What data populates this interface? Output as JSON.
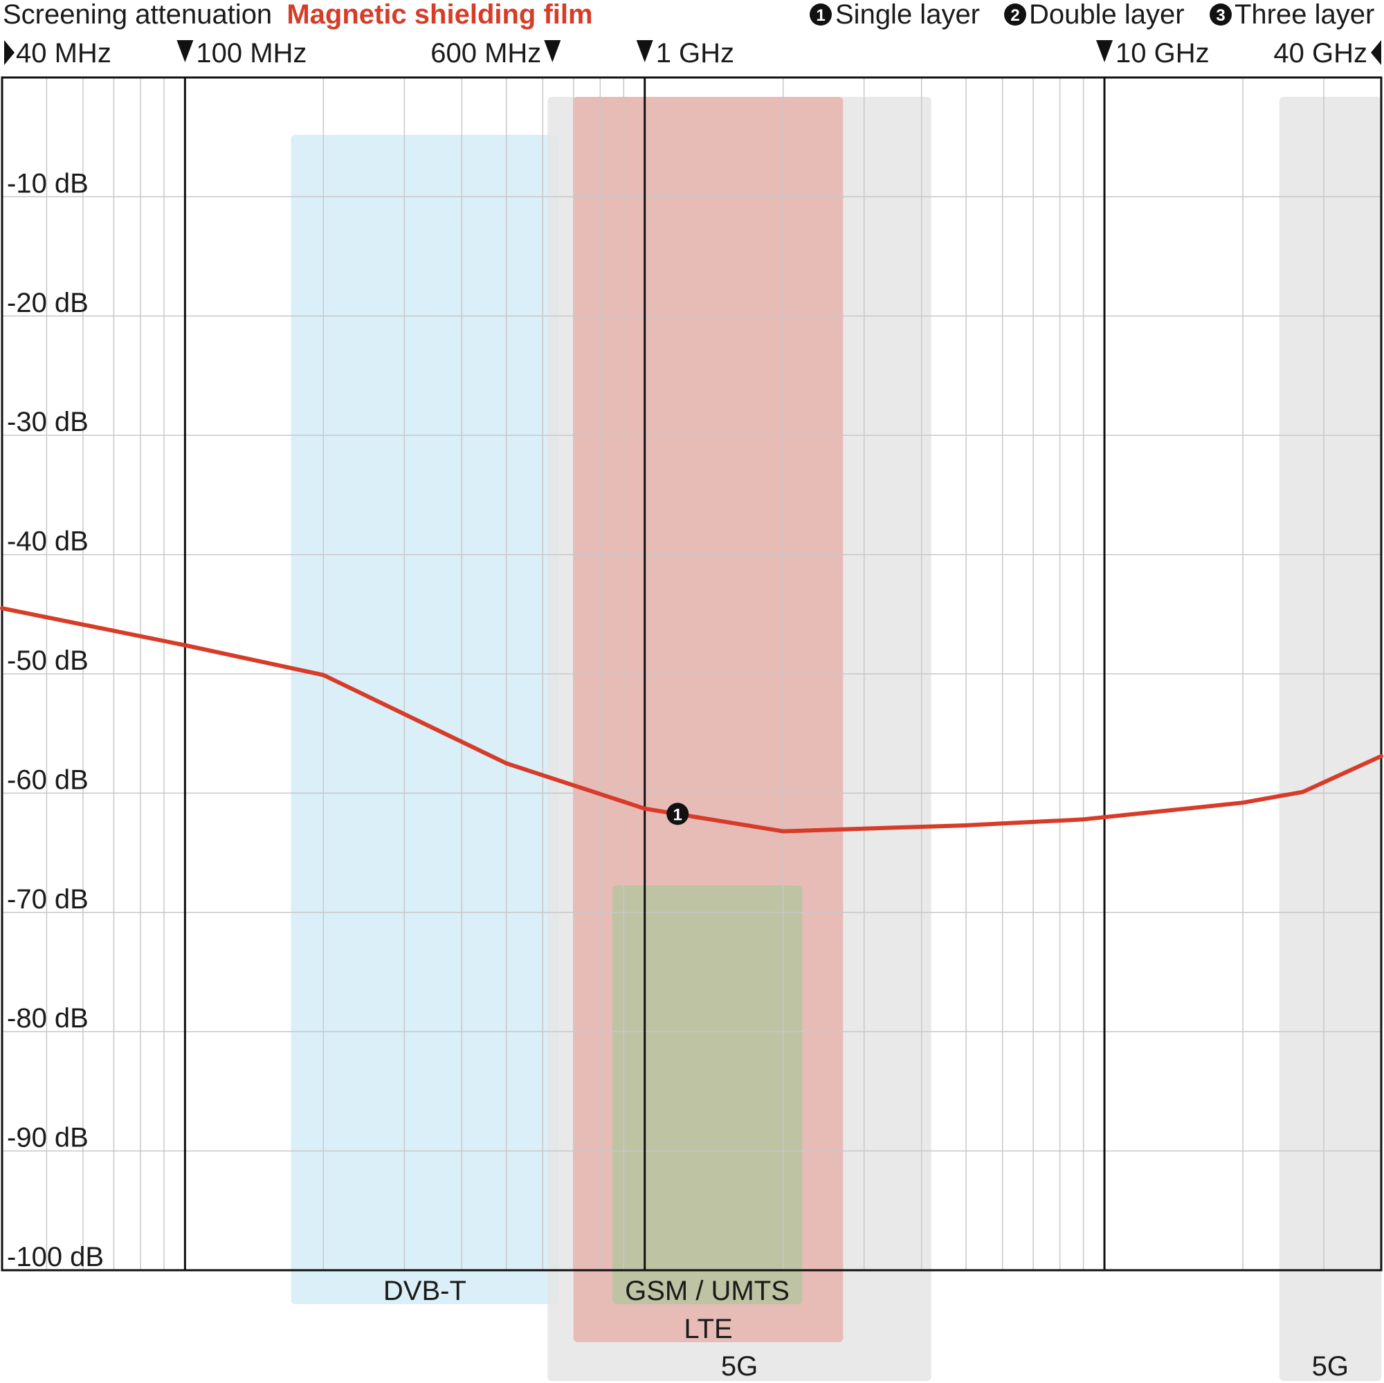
{
  "header": {
    "title_prefix": "Screening attenuation",
    "title_product": "Magnetic shielding film",
    "legend": [
      {
        "marker": "1",
        "label": "Single layer"
      },
      {
        "marker": "2",
        "label": "Double layer"
      },
      {
        "marker": "3",
        "label": "Three layer"
      }
    ]
  },
  "colors": {
    "accent": "#d63c28",
    "axis": "#111111",
    "grid": "#c8c8c8",
    "band_dvbt": "#d4ecf7",
    "band_gsm": "#b5c4a0",
    "band_lte": "#e6b4ad",
    "band_5g": "#e5e5e5"
  },
  "chart_data": {
    "type": "line",
    "x_scale": "log",
    "xlim": [
      40,
      40000
    ],
    "ylim": [
      -100,
      0
    ],
    "x_unit": "MHz",
    "freq_markers": [
      {
        "label": "40 MHz",
        "x": 40,
        "arrow": "right",
        "text_side": "after"
      },
      {
        "label": "100 MHz",
        "x": 100,
        "arrow": "down",
        "text_side": "after"
      },
      {
        "label": "600 MHz",
        "x": 600,
        "arrow": "down",
        "text_side": "before"
      },
      {
        "label": "1 GHz",
        "x": 1000,
        "arrow": "down",
        "text_side": "after"
      },
      {
        "label": "10 GHz",
        "x": 10000,
        "arrow": "down",
        "text_side": "after"
      },
      {
        "label": "40 GHz",
        "x": 40000,
        "arrow": "left",
        "text_side": "before"
      }
    ],
    "major_x": [
      100,
      1000,
      10000
    ],
    "y_ticks": [
      {
        "value": -10,
        "label": "-10 dB"
      },
      {
        "value": -20,
        "label": "-20 dB"
      },
      {
        "value": -30,
        "label": "-30 dB"
      },
      {
        "value": -40,
        "label": "-40 dB"
      },
      {
        "value": -50,
        "label": "-50 dB"
      },
      {
        "value": -60,
        "label": "-60 dB"
      },
      {
        "value": -70,
        "label": "-70 dB"
      },
      {
        "value": -80,
        "label": "-80 dB"
      },
      {
        "value": -90,
        "label": "-90 dB"
      },
      {
        "value": -100,
        "label": "-100 dB"
      }
    ],
    "bands": [
      {
        "label": "DVB-T",
        "x_from": 170,
        "x_to": 650,
        "color": "#d4ecf7",
        "row": 1
      },
      {
        "label": "5G",
        "x_from": 615,
        "x_to": 4200,
        "color": "#e5e5e5",
        "row": 3
      },
      {
        "label": "5G",
        "x_from": 24000,
        "x_to": 40000,
        "color": "#e5e5e5",
        "row": 3
      },
      {
        "label": "LTE",
        "x_from": 700,
        "x_to": 2700,
        "color": "#e6b4ad",
        "row": 2
      },
      {
        "label": "GSM / UMTS",
        "x_from": 850,
        "x_to": 2200,
        "color": "#b5c4a0",
        "row": 1
      }
    ],
    "series": [
      {
        "marker": "1",
        "color": "#d63c28",
        "x": [
          40,
          100,
          200,
          500,
          1000,
          2000,
          5000,
          9000,
          20000,
          27000,
          40000
        ],
        "y": [
          -44.5,
          -47.6,
          -50.1,
          -57.5,
          -61.3,
          -63.2,
          -62.7,
          -62.2,
          -60.8,
          -59.9,
          -56.9
        ]
      }
    ]
  }
}
